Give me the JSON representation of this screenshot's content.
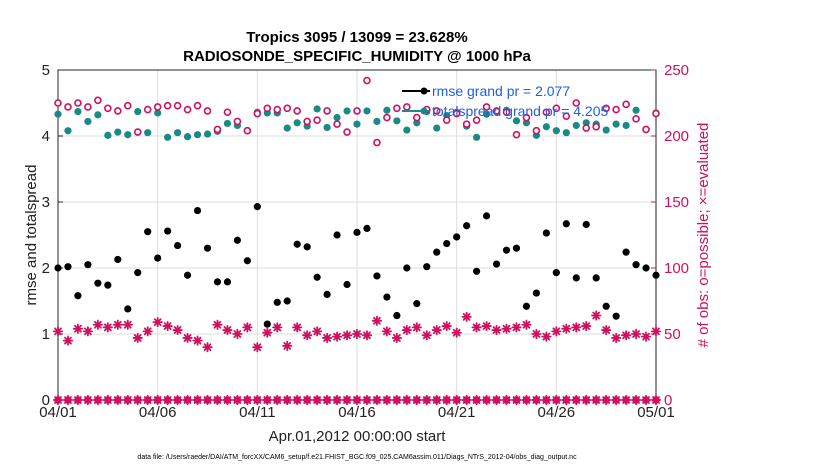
{
  "chart_data": {
    "type": "scatter",
    "title": [
      "Tropics 3095 / 13099 = 23.628%",
      "RADIOSONDE_SPECIFIC_HUMIDITY @ 1000 hPa"
    ],
    "xlabel": "Apr.01,2012 00:00:00 start",
    "ylabel_left": "rmse and totalspread",
    "ylabel_right": "# of obs: o=possible; ×=evaluated",
    "xlim": [
      0,
      30
    ],
    "ylim_left": [
      0,
      5
    ],
    "ylim_right": [
      0,
      250
    ],
    "x_ticks": [
      0,
      5,
      10,
      15,
      20,
      25,
      30
    ],
    "x_tick_labels": [
      "04/01",
      "04/06",
      "04/11",
      "04/16",
      "04/21",
      "04/26",
      "05/01"
    ],
    "y_ticks_left": [
      0,
      1,
      2,
      3,
      4,
      5
    ],
    "y_ticks_right": [
      0,
      50,
      100,
      150,
      200,
      250
    ],
    "grid": true,
    "legend": [
      "rmse grand pr = 2.077",
      "totalspread grand pr = 4.205"
    ],
    "legend_position": "top-right",
    "x": [
      0,
      0.5,
      1,
      1.5,
      2,
      2.5,
      3,
      3.5,
      4,
      4.5,
      5,
      5.5,
      6,
      6.5,
      7,
      7.5,
      8,
      8.5,
      9,
      9.5,
      10,
      10.5,
      11,
      11.5,
      12,
      12.5,
      13,
      13.5,
      14,
      14.5,
      15,
      15.5,
      16,
      16.5,
      17,
      17.5,
      18,
      18.5,
      19,
      19.5,
      20,
      20.5,
      21,
      21.5,
      22,
      22.5,
      23,
      23.5,
      24,
      24.5,
      25,
      25.5,
      26,
      26.5,
      27,
      27.5,
      28,
      28.5,
      29,
      29.5,
      30
    ],
    "series": [
      {
        "name": "rmse",
        "axis": "left",
        "marker": "dot",
        "color": "#000000",
        "values": [
          2.0,
          2.02,
          1.58,
          2.05,
          1.77,
          1.74,
          2.13,
          1.38,
          1.93,
          2.55,
          2.15,
          2.56,
          2.34,
          1.89,
          2.87,
          2.3,
          1.79,
          1.79,
          2.42,
          2.11,
          2.93,
          1.15,
          1.48,
          1.5,
          2.36,
          2.32,
          1.86,
          1.6,
          2.5,
          1.75,
          2.54,
          2.6,
          1.88,
          1.56,
          1.28,
          2.0,
          1.46,
          2.02,
          2.24,
          2.37,
          2.47,
          2.64,
          1.95,
          2.79,
          2.06,
          2.27,
          2.3,
          1.42,
          1.62,
          2.53,
          1.93,
          2.67,
          1.85,
          2.66,
          1.85,
          1.42,
          1.27,
          2.24,
          2.05,
          2.0,
          1.89
        ]
      },
      {
        "name": "totalspread",
        "axis": "left",
        "marker": "dot",
        "color": "#1a8a86",
        "values": [
          4.33,
          4.08,
          4.37,
          4.22,
          4.32,
          4.01,
          4.06,
          4.02,
          4.37,
          4.05,
          4.35,
          3.98,
          4.05,
          3.99,
          4.02,
          4.03,
          4.07,
          4.19,
          4.16,
          4.08,
          4.36,
          4.35,
          4.35,
          4.12,
          4.2,
          4.15,
          4.41,
          4.13,
          4.28,
          4.38,
          4.18,
          4.38,
          4.22,
          4.39,
          4.23,
          4.09,
          4.2,
          4.37,
          4.12,
          4.31,
          4.36,
          4.15,
          3.98,
          4.33,
          4.37,
          4.39,
          4.23,
          4.2,
          4.01,
          4.14,
          4.08,
          4.05,
          4.16,
          4.2,
          4.18,
          4.09,
          4.18,
          4.16,
          4.39,
          4.1,
          4.35
        ]
      },
      {
        "name": "possible",
        "axis": "right",
        "marker": "circle",
        "color": "#d0105f",
        "values": [
          225,
          222,
          225,
          222,
          227,
          221,
          219,
          223,
          203,
          220,
          222,
          223,
          223,
          220,
          223,
          219,
          205,
          218,
          211,
          204,
          217,
          221,
          220,
          221,
          219,
          211,
          212,
          219,
          209,
          203,
          219,
          242,
          195,
          214,
          221,
          222,
          214,
          220,
          219,
          212,
          217,
          209,
          212,
          222,
          219,
          218,
          201,
          214,
          204,
          218,
          221,
          215,
          225,
          206,
          207,
          221,
          220,
          224,
          213,
          205,
          217
        ]
      },
      {
        "name": "evaluated",
        "axis": "right",
        "marker": "star",
        "color": "#d0105f",
        "values": [
          52,
          45,
          54,
          52,
          57,
          55,
          57,
          57,
          47,
          52,
          59,
          56,
          53,
          47,
          45,
          40,
          57,
          53,
          50,
          55,
          40,
          51,
          55,
          41,
          55,
          49,
          52,
          47,
          48,
          49,
          50,
          49,
          60,
          52,
          47,
          53,
          55,
          49,
          53,
          56,
          51,
          63,
          55,
          56,
          53,
          54,
          55,
          57,
          50,
          48,
          52,
          54,
          55,
          56,
          64,
          53,
          47,
          49,
          50,
          48,
          52
        ]
      },
      {
        "name": "rmse_possible_zero",
        "axis": "right",
        "marker": "circle",
        "color": "#d0105f",
        "values": [
          0,
          0,
          0,
          0,
          0,
          0,
          0,
          0,
          0,
          0,
          0,
          0,
          0,
          0,
          0,
          0,
          0,
          0,
          0,
          0,
          0,
          0,
          0,
          0,
          0,
          0,
          0,
          0,
          0,
          0,
          0,
          0,
          0,
          0,
          0,
          0,
          0,
          0,
          0,
          0,
          0,
          0,
          0,
          0,
          0,
          0,
          0,
          0,
          0,
          0,
          0,
          0,
          0,
          0,
          0,
          0,
          0,
          0,
          0,
          0,
          0
        ]
      }
    ]
  },
  "colors": {
    "rmse": "#000000",
    "spread": "#1a8a86",
    "obs": "#d0105f",
    "legend_text": "#1f5fe0",
    "grid": "#dddddd"
  },
  "footnote": "data file: /Users/raeder/DAI/ATM_forcXX/CAM6_setup/f.e21.FHIST_BGC.f09_025.CAM6assim.011/Diags_NTrS_2012-04/obs_diag_output.nc"
}
